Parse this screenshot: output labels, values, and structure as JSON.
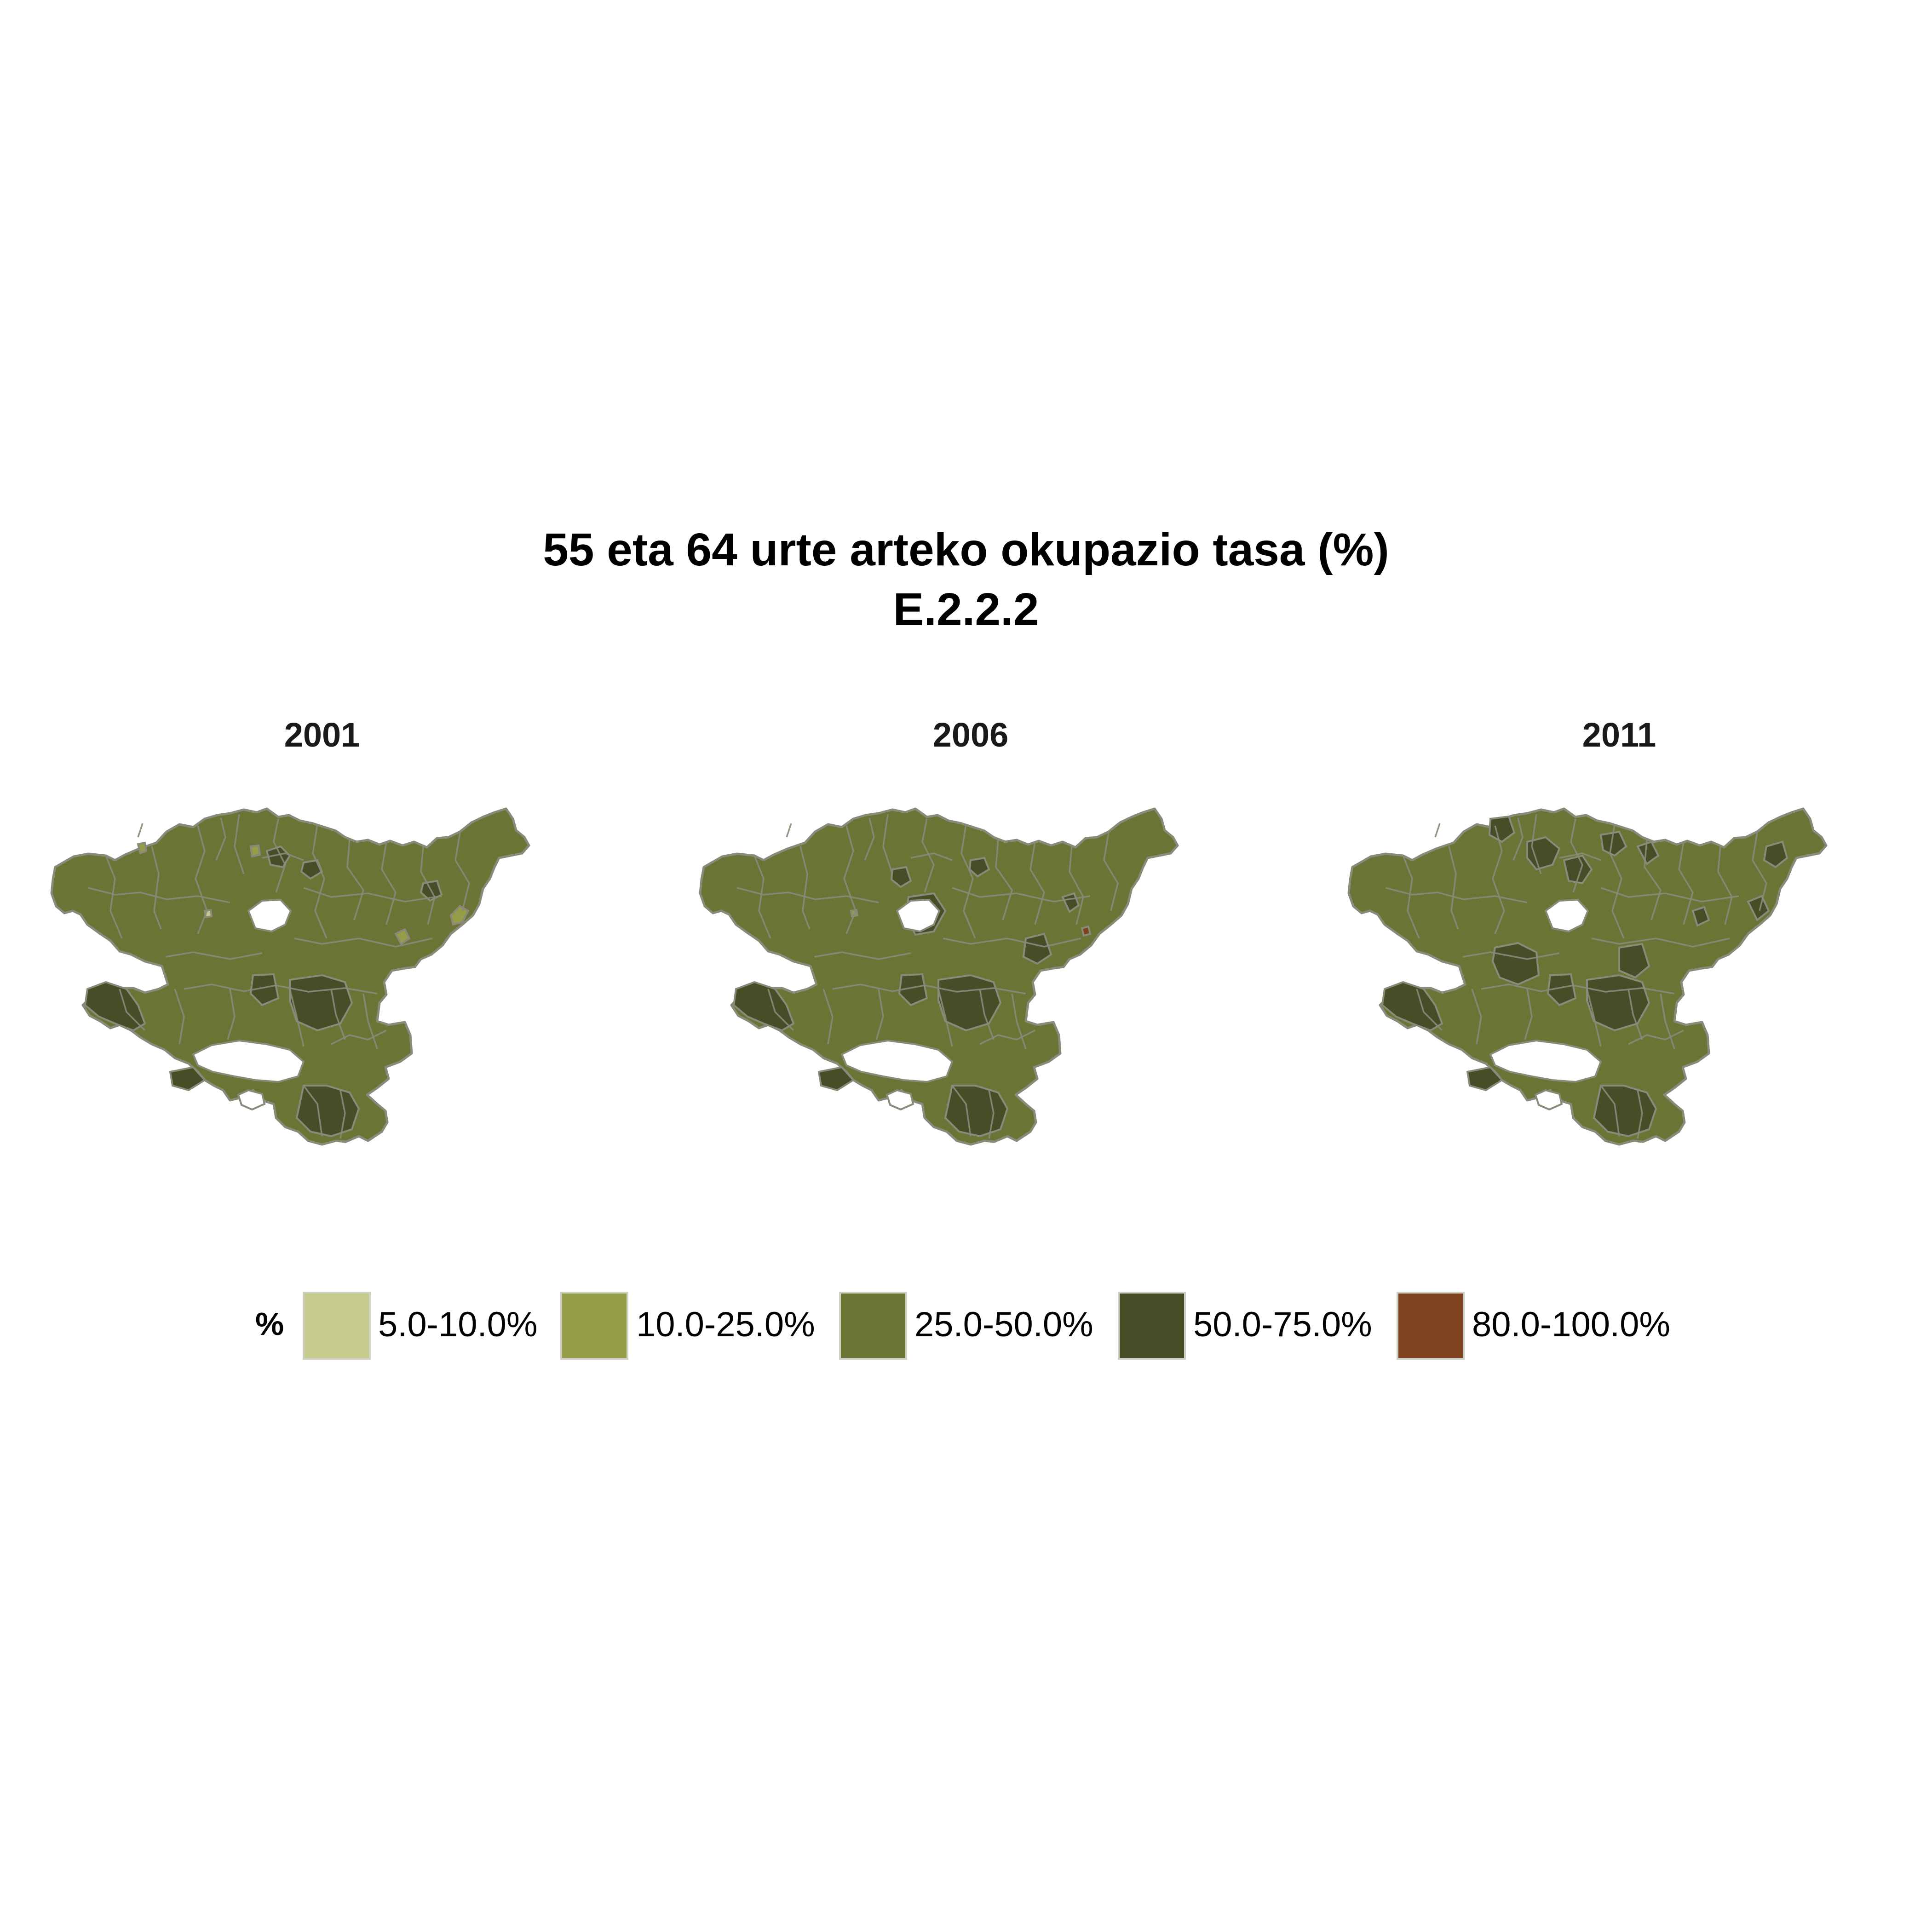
{
  "title": {
    "line1": "55 eta 64 urte arteko okupazio tasa (%)",
    "line2": "E.2.2.2"
  },
  "panels": [
    {
      "year": "2001"
    },
    {
      "year": "2006"
    },
    {
      "year": "2011"
    }
  ],
  "legend": {
    "title": "%",
    "items": [
      {
        "label": "5.0-10.0%",
        "color": "#c5cb8c"
      },
      {
        "label": "10.0-25.0%",
        "color": "#959d47"
      },
      {
        "label": "25.0-50.0%",
        "color": "#6b7434"
      },
      {
        "label": "50.0-75.0%",
        "color": "#474d26"
      },
      {
        "label": "80.0-100.0%",
        "color": "#7e421e"
      }
    ]
  },
  "colors": {
    "base": "#6b7434",
    "dark": "#474d26",
    "light": "#959d47",
    "lightest": "#c5cb8c",
    "accent": "#7e421e",
    "border": "#8a8a7a"
  }
}
